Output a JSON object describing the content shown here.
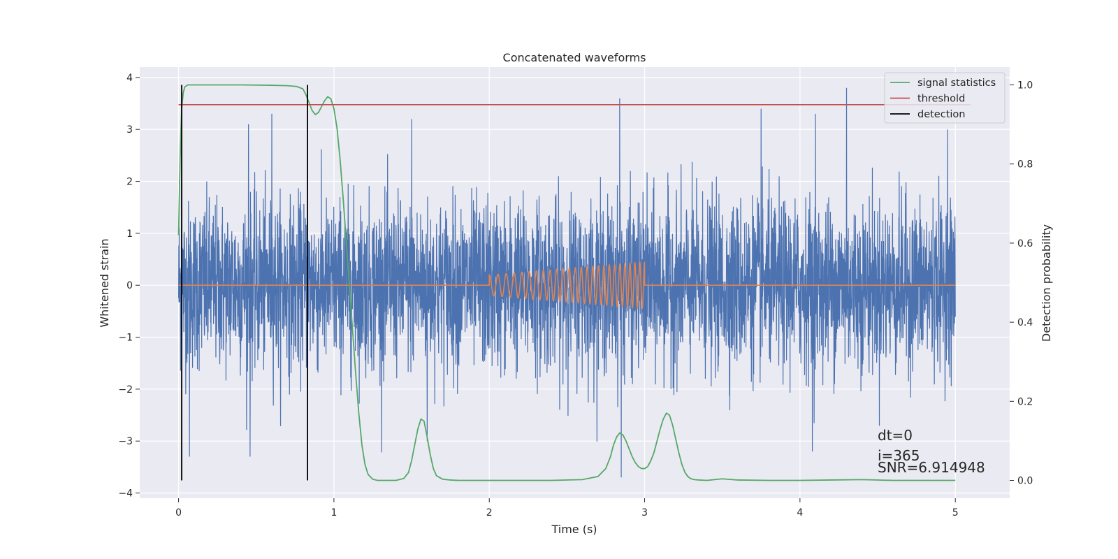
{
  "chart_data": {
    "type": "line",
    "title": "Concatenated waveforms",
    "xlabel": "Time (s)",
    "ylabel_left": "Whitened strain",
    "ylabel_right": "Detection probability",
    "xlim": [
      -0.25,
      5.35
    ],
    "ylim_left": [
      -4.1,
      4.2
    ],
    "ylim_right": [
      -0.045,
      1.045
    ],
    "x_ticks": [
      0,
      1,
      2,
      3,
      4,
      5
    ],
    "y_left_ticks": [
      -4,
      -3,
      -2,
      -1,
      0,
      1,
      2,
      3,
      4
    ],
    "y_right_ticks": [
      0.0,
      0.2,
      0.4,
      0.6,
      0.8,
      1.0
    ],
    "grid": true,
    "legend_placement": "top-right",
    "colors": {
      "strain": "#4c72b0",
      "template": "#dd8452",
      "signal_statistics": "#55a868",
      "threshold": "#c44e52",
      "detection": "#000000",
      "axes_bg": "#eaeaf2",
      "grid": "#ffffff"
    },
    "series": [
      {
        "name": "",
        "axis": "left",
        "description_kind": "whitened strain noise",
        "x_range": [
          0,
          5
        ],
        "noise_std": 0.8,
        "spikes": [
          [
            0.02,
            2.8
          ],
          [
            0.6,
            3.3
          ],
          [
            0.45,
            3.1
          ],
          [
            0.07,
            -3.3
          ],
          [
            1.5,
            3.2
          ],
          [
            2.84,
            3.6
          ],
          [
            3.75,
            3.4
          ],
          [
            4.3,
            3.8
          ],
          [
            4.1,
            3.3
          ],
          [
            2.85,
            -3.7
          ],
          [
            4.08,
            -3.2
          ],
          [
            4.95,
            3.0
          ],
          [
            0.46,
            -3.3
          ],
          [
            1.6,
            -3.0
          ]
        ]
      },
      {
        "name": "",
        "axis": "left",
        "description_kind": "injected chirp",
        "flat_x": [
          0,
          5
        ],
        "chirp_x": [
          2.0,
          3.0
        ],
        "chirp_amp": [
          0.2,
          0.45
        ],
        "chirp_cycles": 25
      },
      {
        "name": "signal statistics",
        "axis": "right",
        "x": [
          0,
          0.01,
          0.02,
          0.03,
          0.04,
          0.06,
          0.08,
          0.1,
          0.2,
          0.4,
          0.6,
          0.7,
          0.76,
          0.8,
          0.82,
          0.84,
          0.86,
          0.88,
          0.9,
          0.92,
          0.94,
          0.96,
          0.98,
          1.0,
          1.02,
          1.04,
          1.06,
          1.08,
          1.1,
          1.12,
          1.14,
          1.16,
          1.18,
          1.2,
          1.22,
          1.25,
          1.28,
          1.3,
          1.35,
          1.4,
          1.45,
          1.48,
          1.5,
          1.52,
          1.54,
          1.56,
          1.58,
          1.6,
          1.62,
          1.64,
          1.66,
          1.7,
          1.75,
          1.8,
          1.9,
          2.0,
          2.2,
          2.4,
          2.6,
          2.7,
          2.75,
          2.78,
          2.8,
          2.82,
          2.84,
          2.86,
          2.88,
          2.9,
          2.92,
          2.94,
          2.96,
          2.98,
          3.0,
          3.02,
          3.04,
          3.06,
          3.08,
          3.1,
          3.12,
          3.14,
          3.16,
          3.18,
          3.2,
          3.22,
          3.24,
          3.26,
          3.28,
          3.3,
          3.32,
          3.35,
          3.4,
          3.45,
          3.5,
          3.6,
          3.8,
          4.0,
          4.2,
          4.4,
          4.6,
          4.8,
          5.0
        ],
        "y": [
          0.62,
          0.82,
          0.94,
          0.98,
          0.995,
          1.0,
          1.0,
          1.0,
          1.0,
          1.0,
          0.999,
          0.998,
          0.996,
          0.99,
          0.975,
          0.955,
          0.935,
          0.925,
          0.93,
          0.945,
          0.96,
          0.97,
          0.965,
          0.94,
          0.89,
          0.81,
          0.71,
          0.6,
          0.49,
          0.38,
          0.27,
          0.17,
          0.09,
          0.04,
          0.015,
          0.003,
          0.0,
          0.0,
          0.0,
          0.0,
          0.005,
          0.02,
          0.05,
          0.09,
          0.13,
          0.155,
          0.15,
          0.11,
          0.065,
          0.03,
          0.012,
          0.003,
          0.001,
          0.0,
          0.0,
          0.0,
          0.0,
          0.0,
          0.002,
          0.01,
          0.03,
          0.06,
          0.09,
          0.11,
          0.12,
          0.115,
          0.1,
          0.08,
          0.06,
          0.045,
          0.035,
          0.03,
          0.03,
          0.035,
          0.05,
          0.07,
          0.1,
          0.13,
          0.155,
          0.17,
          0.165,
          0.14,
          0.105,
          0.07,
          0.04,
          0.02,
          0.009,
          0.004,
          0.002,
          0.001,
          0.0,
          0.002,
          0.004,
          0.001,
          0.0,
          0.0,
          0.001,
          0.002,
          0.0,
          0.0,
          0.0
        ]
      },
      {
        "name": "threshold",
        "axis": "right",
        "x": [
          0,
          5.1
        ],
        "y": [
          0.95,
          0.95
        ]
      },
      {
        "name": "detection",
        "axis": "right",
        "vlines_x": [
          0.02,
          0.83
        ],
        "y_range": [
          0.0,
          1.0
        ]
      }
    ],
    "annotations": [
      "dt=0",
      "i=365",
      "SNR=6.914948"
    ]
  }
}
